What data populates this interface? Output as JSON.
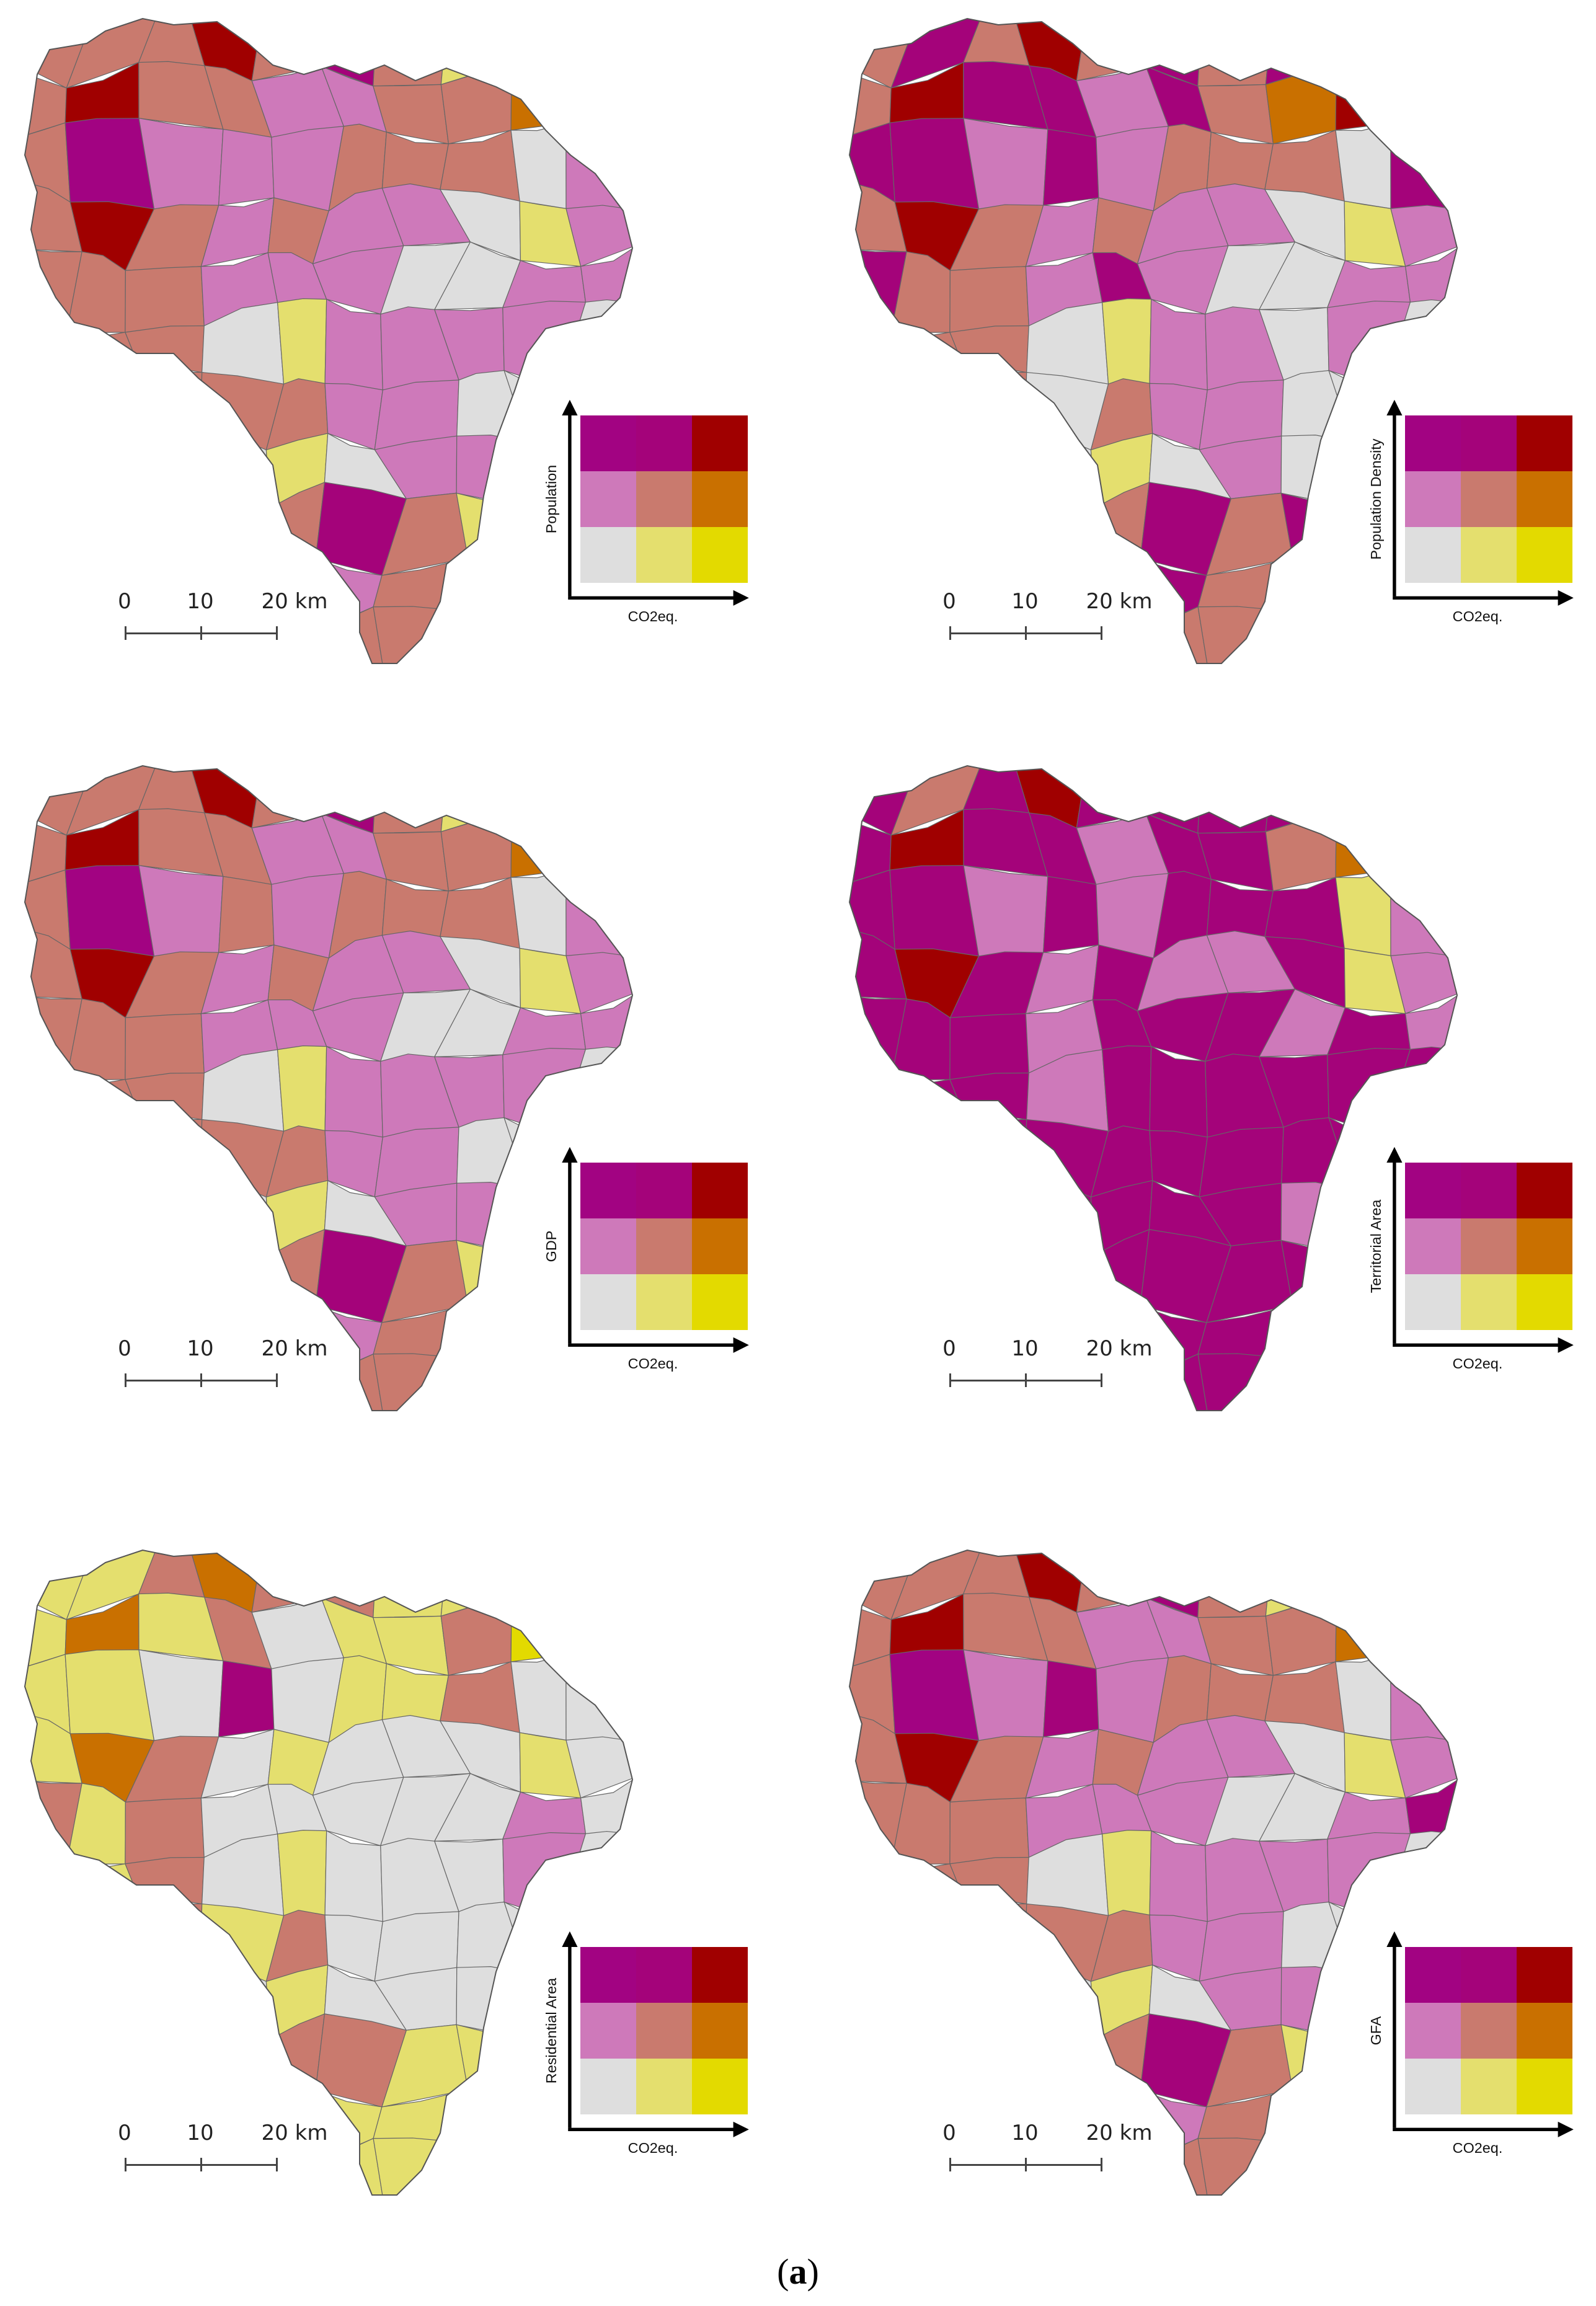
{
  "palette": {
    "low_low": "#dedede",
    "low_mid": "#e4df6e",
    "low_high": "#e3da00",
    "mid_low": "#ce79ba",
    "mid_mid": "#c97a6e",
    "mid_high": "#c97000",
    "high_low": "#a20382",
    "high_mid": "#a4037a",
    "high_high": "#a00000",
    "border": "#666666"
  },
  "scalebar": {
    "labels": [
      "0",
      "10",
      "20 km"
    ]
  },
  "legend_x_label": "CO2eq.",
  "panels": [
    {
      "id": "population",
      "y_label": "Population"
    },
    {
      "id": "population-density",
      "y_label": "Population Density"
    },
    {
      "id": "gdp",
      "y_label": "GDP"
    },
    {
      "id": "territorial-area",
      "y_label": "Territorial Area"
    },
    {
      "id": "residential-area",
      "y_label": "Residential Area"
    },
    {
      "id": "gfa",
      "y_label": "GFA"
    }
  ],
  "caption": {
    "open": "(",
    "letter": "a",
    "close": ")"
  }
}
